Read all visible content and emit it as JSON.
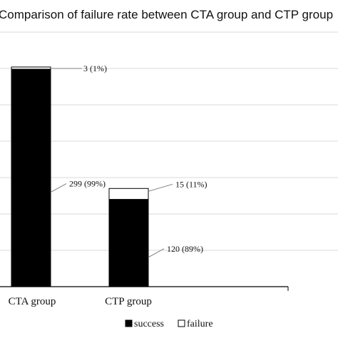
{
  "chart_data": {
    "type": "bar",
    "stacked": true,
    "title": "Comparison of failure rate between CTA group and CTP group",
    "categories": [
      "CTA group",
      "CTP group"
    ],
    "series": [
      {
        "name": "success",
        "color": "#000000",
        "values": [
          299,
          120
        ],
        "labels": [
          "299 (99%)",
          "120 (89%)"
        ]
      },
      {
        "name": "failure",
        "color": "#ffffff",
        "values": [
          3,
          15
        ],
        "labels": [
          "3 (1%)",
          "15 (11%)"
        ]
      }
    ],
    "ylim": [
      0,
      350
    ],
    "ytick_step": 50,
    "grid": true,
    "legend_position": "bottom"
  }
}
